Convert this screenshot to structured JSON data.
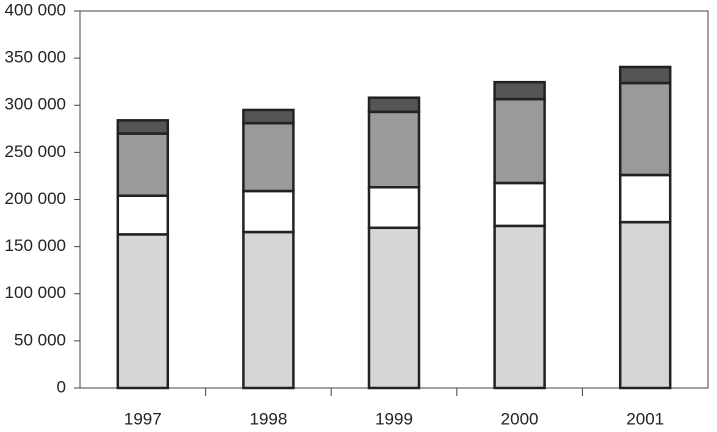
{
  "chart_data": {
    "type": "stacked-bar",
    "categories": [
      "1997",
      "1998",
      "1999",
      "2000",
      "2001"
    ],
    "series": [
      {
        "color": "#d6d6d6",
        "values": [
          163000,
          165500,
          170000,
          172000,
          176000
        ]
      },
      {
        "color": "#ffffff",
        "values": [
          41000,
          43500,
          43000,
          45500,
          50000
        ]
      },
      {
        "color": "#9a9a9a",
        "values": [
          66000,
          72000,
          80000,
          89000,
          97600
        ]
      },
      {
        "color": "#555555",
        "values": [
          14000,
          14000,
          15000,
          18000,
          17000
        ]
      }
    ],
    "ylim": [
      0,
      400000
    ],
    "yticks": [
      0,
      {
        "value": 50000,
        "label": "50 000"
      },
      {
        "value": 100000,
        "label": "100 000"
      },
      {
        "value": 150000,
        "label": "150 000"
      },
      {
        "value": 200000,
        "label": "200 000"
      },
      {
        "value": 250000,
        "label": "250 000"
      },
      {
        "value": 300000,
        "label": "300 000"
      },
      {
        "value": 350000,
        "label": "350 000"
      },
      {
        "value": 400000,
        "label": "400 000"
      }
    ],
    "grid": false
  }
}
